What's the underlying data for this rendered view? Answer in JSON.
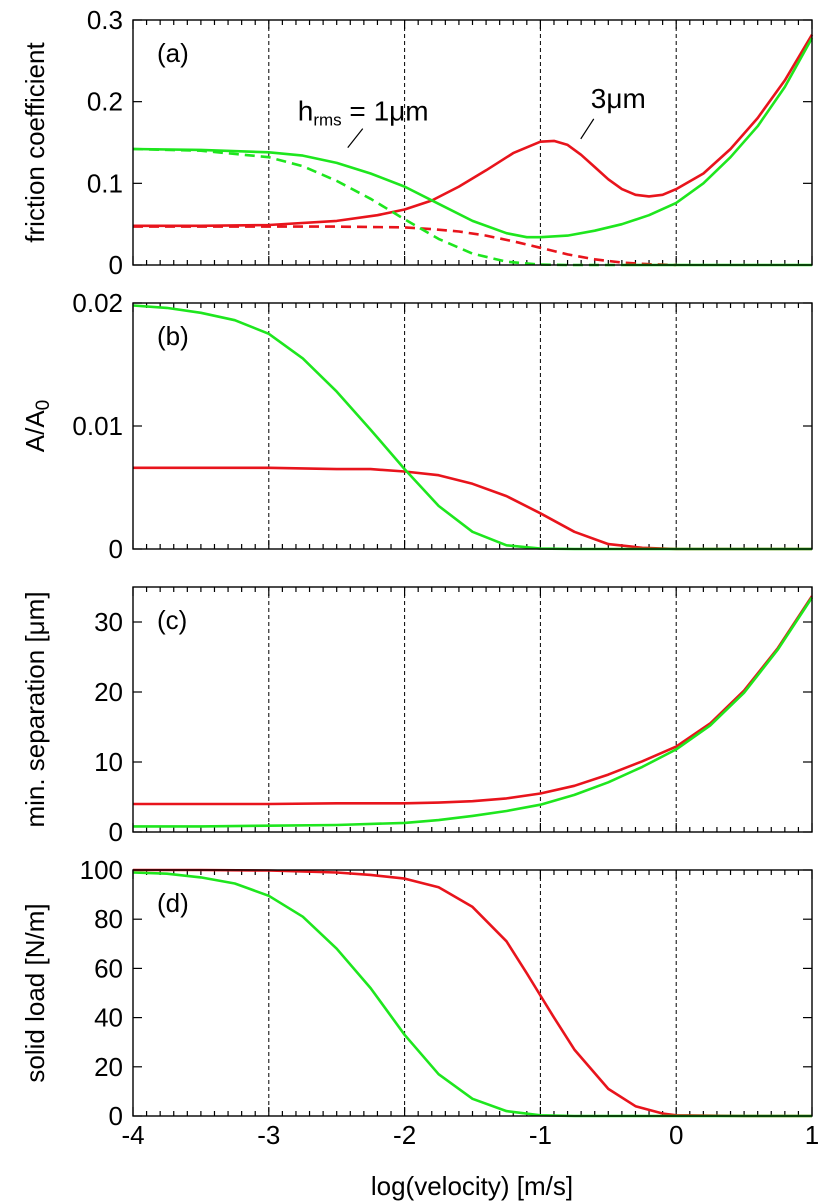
{
  "figure": {
    "xlabel": "log(velocity) [m/s]",
    "colors": {
      "red": "#e8141c",
      "green": "#1ee61e",
      "axis": "#000000",
      "grid": "#000000"
    }
  },
  "chart_data": [
    {
      "type": "line",
      "tag": "(a)",
      "ylabel": "friction coefficient",
      "xlim": [
        -4,
        1
      ],
      "ylim": [
        0,
        0.3
      ],
      "yticks": [
        "0",
        "0.1",
        "0.2",
        "0.3"
      ],
      "xgrid": [
        -3,
        -2,
        -1,
        0
      ],
      "annotations": [
        {
          "prefix": "h",
          "sub": "rms",
          "suffix": " = 1μm",
          "points_to": "green-solid",
          "at": [
            -2.75,
            0.14
          ]
        },
        {
          "prefix": "3μm",
          "sub": "",
          "suffix": "",
          "points_to": "red-solid",
          "at": [
            -0.85,
            0.152
          ]
        }
      ],
      "series": [
        {
          "id": "red-solid",
          "color": "red",
          "dash": false,
          "x": [
            -4,
            -3.5,
            -3,
            -2.5,
            -2.2,
            -2,
            -1.8,
            -1.6,
            -1.4,
            -1.2,
            -1,
            -0.9,
            -0.8,
            -0.7,
            -0.6,
            -0.5,
            -0.4,
            -0.3,
            -0.2,
            -0.1,
            0,
            0.2,
            0.4,
            0.6,
            0.8,
            1
          ],
          "y": [
            0.048,
            0.048,
            0.049,
            0.054,
            0.061,
            0.068,
            0.079,
            0.096,
            0.116,
            0.137,
            0.151,
            0.152,
            0.147,
            0.135,
            0.12,
            0.105,
            0.093,
            0.086,
            0.084,
            0.086,
            0.093,
            0.112,
            0.142,
            0.18,
            0.226,
            0.282
          ]
        },
        {
          "id": "red-dash",
          "color": "red",
          "dash": true,
          "x": [
            -4,
            -3.5,
            -3,
            -2.5,
            -2,
            -1.8,
            -1.6,
            -1.4,
            -1.2,
            -1,
            -0.8,
            -0.6,
            -0.4,
            -0.2,
            0
          ],
          "y": [
            0.047,
            0.047,
            0.047,
            0.047,
            0.046,
            0.044,
            0.041,
            0.036,
            0.029,
            0.021,
            0.013,
            0.007,
            0.003,
            0.001,
            0
          ]
        },
        {
          "id": "green-solid",
          "color": "green",
          "dash": false,
          "x": [
            -4,
            -3.5,
            -3,
            -2.75,
            -2.5,
            -2.25,
            -2,
            -1.75,
            -1.5,
            -1.25,
            -1.1,
            -1,
            -0.8,
            -0.6,
            -0.4,
            -0.2,
            0,
            0.2,
            0.4,
            0.6,
            0.8,
            1
          ],
          "y": [
            0.142,
            0.141,
            0.138,
            0.134,
            0.125,
            0.112,
            0.096,
            0.075,
            0.054,
            0.039,
            0.034,
            0.034,
            0.036,
            0.042,
            0.05,
            0.061,
            0.076,
            0.1,
            0.132,
            0.17,
            0.218,
            0.278
          ]
        },
        {
          "id": "green-dash",
          "color": "green",
          "dash": true,
          "x": [
            -4,
            -3.5,
            -3,
            -2.75,
            -2.5,
            -2.25,
            -2,
            -1.75,
            -1.5,
            -1.25,
            -1,
            -0.8,
            -0.6,
            -0.4
          ],
          "y": [
            0.142,
            0.14,
            0.132,
            0.121,
            0.103,
            0.081,
            0.056,
            0.032,
            0.014,
            0.004,
            0.0005,
            0,
            0,
            0
          ]
        },
        {
          "id": "green-high",
          "color": "green",
          "dash": false,
          "x": [
            -0.4,
            -0.2,
            0,
            0.2,
            0.4,
            0.6,
            0.8,
            1
          ],
          "y": [
            0,
            0,
            0,
            0,
            0,
            0,
            0,
            0
          ]
        }
      ]
    },
    {
      "type": "line",
      "tag": "(b)",
      "ylabel": "A/A",
      "ylabel_sub": "0",
      "xlim": [
        -4,
        1
      ],
      "ylim": [
        0,
        0.02
      ],
      "yticks": [
        "0",
        "0.01",
        "0.02"
      ],
      "xgrid": [
        -3,
        -2,
        -1,
        0
      ],
      "series": [
        {
          "id": "red",
          "color": "red",
          "dash": false,
          "x": [
            -4,
            -3.5,
            -3,
            -2.5,
            -2.25,
            -2,
            -1.75,
            -1.5,
            -1.25,
            -1,
            -0.75,
            -0.5,
            -0.25,
            0,
            0.5,
            1
          ],
          "y": [
            0.0066,
            0.0066,
            0.0066,
            0.0065,
            0.0065,
            0.0063,
            0.006,
            0.0053,
            0.0043,
            0.0029,
            0.0014,
            0.0004,
            0.0001,
            0,
            0,
            0
          ]
        },
        {
          "id": "green",
          "color": "green",
          "dash": false,
          "x": [
            -4,
            -3.75,
            -3.5,
            -3.25,
            -3,
            -2.75,
            -2.5,
            -2.25,
            -2,
            -1.75,
            -1.5,
            -1.25,
            -1,
            -0.75,
            -0.5,
            0,
            0.5,
            1
          ],
          "y": [
            0.0198,
            0.0196,
            0.0192,
            0.0186,
            0.0175,
            0.0155,
            0.0128,
            0.0097,
            0.0065,
            0.0035,
            0.0014,
            0.0003,
            3e-05,
            0,
            0,
            0,
            0,
            0
          ]
        }
      ]
    },
    {
      "type": "line",
      "tag": "(c)",
      "ylabel": "min. separation [μm]",
      "xlim": [
        -4,
        1
      ],
      "ylim": [
        0,
        35
      ],
      "yticks": [
        "0",
        "10",
        "20",
        "30"
      ],
      "xgrid": [
        -3,
        -2,
        -1,
        0
      ],
      "series": [
        {
          "id": "red",
          "color": "red",
          "dash": false,
          "x": [
            -4,
            -3.5,
            -3,
            -2.5,
            -2,
            -1.75,
            -1.5,
            -1.25,
            -1,
            -0.75,
            -0.5,
            -0.25,
            0,
            0.25,
            0.5,
            0.75,
            1
          ],
          "y": [
            4,
            4,
            4,
            4.1,
            4.1,
            4.2,
            4.4,
            4.8,
            5.5,
            6.6,
            8.2,
            10.1,
            12.2,
            15.5,
            20.2,
            26.3,
            33.7
          ]
        },
        {
          "id": "green",
          "color": "green",
          "dash": false,
          "x": [
            -4,
            -3.5,
            -3,
            -2.5,
            -2,
            -1.75,
            -1.5,
            -1.25,
            -1,
            -0.75,
            -0.5,
            -0.25,
            0,
            0.25,
            0.5,
            0.75,
            1
          ],
          "y": [
            0.8,
            0.8,
            0.9,
            1,
            1.3,
            1.7,
            2.3,
            3.0,
            3.9,
            5.3,
            7.1,
            9.3,
            11.8,
            15.2,
            19.9,
            26.1,
            33.5
          ]
        }
      ]
    },
    {
      "type": "line",
      "tag": "(d)",
      "ylabel": "solid load [N/m]",
      "xlim": [
        -4,
        1
      ],
      "ylim": [
        0,
        100
      ],
      "yticks": [
        "0",
        "20",
        "40",
        "60",
        "80",
        "100"
      ],
      "xticks": [
        "-4",
        "-3",
        "-2",
        "-1",
        "0",
        "1"
      ],
      "xgrid": [
        -3,
        -2,
        -1,
        0
      ],
      "series": [
        {
          "id": "red",
          "color": "red",
          "dash": false,
          "x": [
            -4,
            -3.5,
            -3,
            -2.5,
            -2.25,
            -2,
            -1.75,
            -1.5,
            -1.25,
            -1.1,
            -1,
            -0.9,
            -0.75,
            -0.5,
            -0.3,
            -0.1,
            0,
            0.5,
            1
          ],
          "y": [
            100,
            100,
            99.8,
            99,
            98,
            96.5,
            93,
            85,
            71,
            58,
            49,
            40,
            27,
            11,
            4,
            1,
            0.3,
            0,
            0
          ]
        },
        {
          "id": "green",
          "color": "green",
          "dash": false,
          "x": [
            -4,
            -3.75,
            -3.5,
            -3.25,
            -3,
            -2.75,
            -2.5,
            -2.25,
            -2,
            -1.75,
            -1.5,
            -1.25,
            -1,
            -0.75,
            -0.5,
            0,
            0.5,
            1
          ],
          "y": [
            99,
            98.5,
            97,
            94.5,
            89.5,
            81,
            68,
            52,
            33,
            17,
            7,
            2,
            0.3,
            0,
            0,
            0,
            0,
            0
          ]
        }
      ]
    }
  ]
}
